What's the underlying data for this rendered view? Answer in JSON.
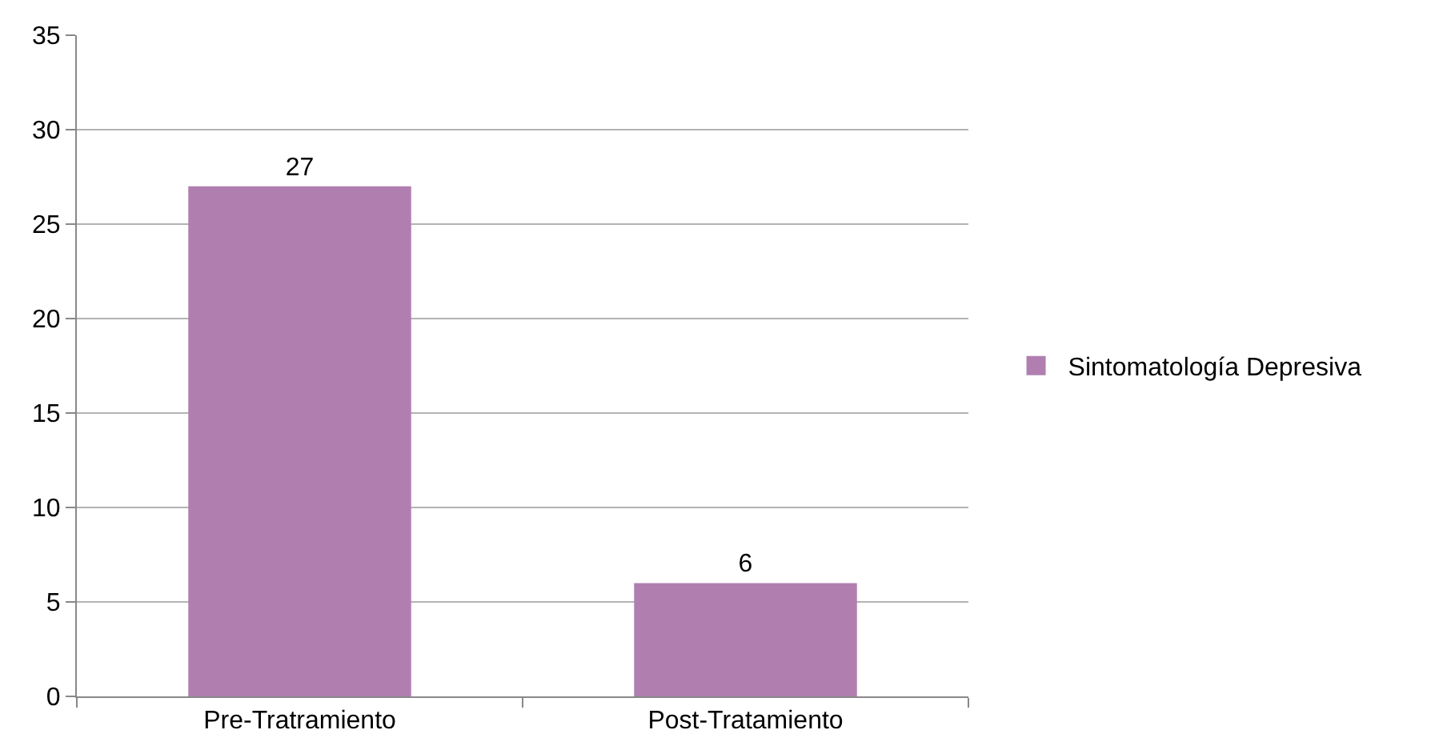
{
  "chart_data": {
    "type": "bar",
    "categories": [
      "Pre-Tratramiento",
      "Post-Tratamiento"
    ],
    "series": [
      {
        "name": "Sintomatología Depresiva",
        "color": "#b07fb0",
        "values": [
          27,
          6
        ]
      }
    ],
    "ylim": [
      0,
      35
    ],
    "yticks": [
      0,
      5,
      10,
      15,
      20,
      25,
      30,
      35
    ],
    "grid": "y",
    "legend": "right",
    "data_labels": true
  }
}
